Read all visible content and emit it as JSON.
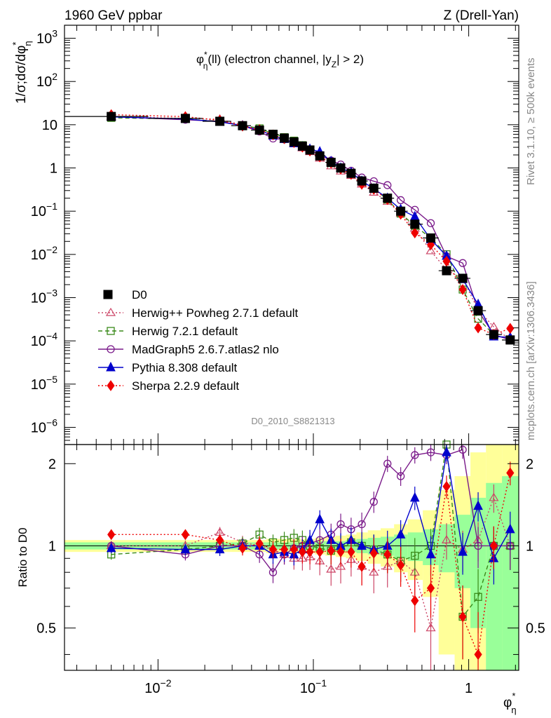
{
  "chart_data": {
    "type": "line",
    "header_left": "1960 GeV ppbar",
    "header_right": "Z (Drell-Yan)",
    "title": "φ*η(ll) (electron channel, |yZ| > 2)",
    "title_parts": {
      "phi": "φ",
      "sup": "*",
      "sub": "η",
      "rest": "(ll) (electron channel, |y",
      "ysub": "Z",
      "tail": "| > 2)"
    },
    "ylabel": "1/σ;dσ/dφ*η",
    "ylabel_parts": {
      "main": "1/σ;dσ/dφ",
      "sup": "*",
      "sub": "η"
    },
    "ratio_ylabel": "Ratio to D0",
    "xlabel": "φ*η",
    "xlabel_parts": {
      "main": "φ",
      "sup": "*",
      "sub": "η"
    },
    "analysis_id": "D0_2010_S8821313",
    "side_right_top": "Rivet 3.1.10, ≥ 500k events",
    "side_right_bottom": "mcplots.cern.ch [arXiv:1306.3436]",
    "x_scale": "log",
    "y_scale": "log",
    "xlim": [
      0.0025,
      2.1
    ],
    "ylim": [
      4e-07,
      2000
    ],
    "ratio_ylim": [
      0.35,
      2.35
    ],
    "x_ticks": [
      {
        "value": 0.01,
        "base": "10",
        "exp": "−2"
      },
      {
        "value": 0.1,
        "base": "10",
        "exp": "−1"
      },
      {
        "value": 1,
        "base": "1",
        "exp": ""
      }
    ],
    "y_ticks": [
      {
        "value": 1000,
        "base": "10",
        "exp": "3"
      },
      {
        "value": 100,
        "base": "10",
        "exp": "2"
      },
      {
        "value": 10,
        "base": "10",
        "exp": ""
      },
      {
        "value": 1,
        "base": "1",
        "exp": ""
      },
      {
        "value": 0.1,
        "base": "10",
        "exp": "−1"
      },
      {
        "value": 0.01,
        "base": "10",
        "exp": "−2"
      },
      {
        "value": 0.001,
        "base": "10",
        "exp": "−3"
      },
      {
        "value": 0.0001,
        "base": "10",
        "exp": "−4"
      },
      {
        "value": 1e-05,
        "base": "10",
        "exp": "−5"
      },
      {
        "value": 1e-06,
        "base": "10",
        "exp": "−6"
      }
    ],
    "ratio_ticks": [
      {
        "value": 2,
        "label": "2"
      },
      {
        "value": 1,
        "label": "1"
      },
      {
        "value": 0.5,
        "label": "0.5"
      }
    ],
    "x": [
      0.005,
      0.015,
      0.025,
      0.035,
      0.045,
      0.055,
      0.065,
      0.075,
      0.085,
      0.095,
      0.11,
      0.13,
      0.15,
      0.175,
      0.205,
      0.245,
      0.3,
      0.365,
      0.45,
      0.57,
      0.72,
      0.915,
      1.15,
      1.45,
      1.85
    ],
    "data": {
      "name": "D0",
      "values": [
        15.5,
        14,
        12,
        9.5,
        7.5,
        6,
        4.9,
        4.0,
        3.2,
        2.6,
        1.9,
        1.35,
        1.0,
        0.75,
        0.5,
        0.34,
        0.2,
        0.1,
        0.05,
        0.024,
        0.0042,
        0.0028,
        0.0005,
        0.00014,
        0.000105
      ],
      "ratio_band_inner": [
        0.03,
        0.03,
        0.03,
        0.03,
        0.03,
        0.03,
        0.03,
        0.03,
        0.03,
        0.03,
        0.04,
        0.04,
        0.04,
        0.05,
        0.06,
        0.07,
        0.08,
        0.1,
        0.12,
        0.15,
        0.2,
        0.3,
        0.5,
        0.7,
        0.8
      ],
      "ratio_band_outer": [
        0.05,
        0.05,
        0.05,
        0.05,
        0.05,
        0.06,
        0.06,
        0.06,
        0.06,
        0.06,
        0.07,
        0.08,
        0.09,
        0.1,
        0.12,
        0.14,
        0.16,
        0.2,
        0.25,
        0.35,
        0.6,
        0.8,
        1.2,
        1.5,
        1.5
      ]
    },
    "series": [
      {
        "name": "Herwig++ Powheg 2.7.1 default",
        "color": "#cc4466",
        "marker": "triangle-open",
        "dash": "2,3",
        "ratio": [
          1.0,
          1.0,
          1.12,
          1.03,
          1.0,
          0.97,
          0.93,
          0.9,
          0.9,
          0.91,
          0.88,
          0.82,
          0.84,
          0.89,
          0.84,
          0.8,
          0.84,
          0.88,
          0.8,
          0.5,
          1.05,
          0.97,
          1.05,
          1.5,
          1.0
        ]
      },
      {
        "name": "Herwig 7.2.1 default",
        "color": "#3a8a1a",
        "marker": "square-open",
        "dash": "6,4",
        "ratio": [
          0.93,
          0.97,
          1.0,
          1.02,
          1.1,
          1.03,
          1.05,
          1.07,
          1.05,
          1.0,
          0.98,
          0.96,
          0.98,
          1.03,
          1.0,
          0.97,
          0.93,
          0.88,
          0.92,
          1.0,
          2.4,
          0.55,
          0.65,
          1.0,
          1.0
        ]
      },
      {
        "name": "MadGraph5 2.6.7.atlas2 nlo",
        "color": "#7a1a8a",
        "marker": "circle-open",
        "dash": "",
        "ratio": [
          1.0,
          0.93,
          1.0,
          1.0,
          0.93,
          0.8,
          0.93,
          0.98,
          1.0,
          1.02,
          1.05,
          1.1,
          1.2,
          1.15,
          1.2,
          1.45,
          2.0,
          1.8,
          2.15,
          2.2,
          2.15,
          2.25,
          1.0,
          1.0,
          1.0
        ]
      },
      {
        "name": "Pythia 8.308 default",
        "color": "#0000cc",
        "marker": "triangle",
        "dash": "",
        "ratio": [
          0.98,
          0.97,
          0.97,
          1.0,
          1.0,
          0.93,
          0.95,
          0.93,
          0.97,
          1.05,
          1.25,
          1.05,
          1.0,
          1.05,
          1.0,
          0.97,
          1.0,
          1.1,
          1.5,
          0.93,
          2.2,
          0.95,
          1.4,
          0.9,
          1.15
        ]
      },
      {
        "name": "Sherpa 2.2.9 default",
        "color": "#ee0000",
        "marker": "diamond",
        "dash": "2,3",
        "ratio": [
          1.1,
          1.1,
          1.05,
          0.98,
          1.02,
          0.97,
          0.97,
          0.97,
          0.95,
          0.95,
          0.95,
          0.96,
          0.95,
          0.95,
          0.84,
          0.94,
          0.93,
          0.85,
          0.63,
          0.7,
          1.65,
          0.55,
          0.4,
          1.0,
          1.85
        ]
      }
    ]
  }
}
